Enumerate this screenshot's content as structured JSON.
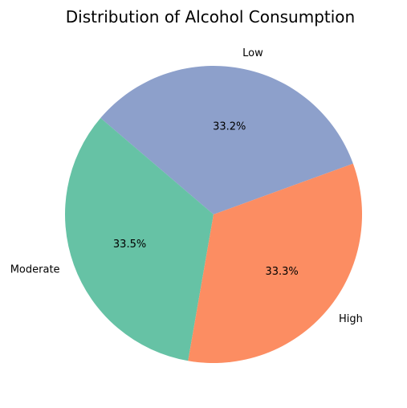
{
  "chart_data": {
    "type": "pie",
    "title": "Distribution of Alcohol Consumption",
    "slices": [
      {
        "label": "Low",
        "value": 33.2,
        "pct_label": "33.2%",
        "color": "#8da0cb"
      },
      {
        "label": "Moderate",
        "value": 33.5,
        "pct_label": "33.5%",
        "color": "#66c2a5"
      },
      {
        "label": "High",
        "value": 33.3,
        "pct_label": "33.3%",
        "color": "#fc8d62"
      }
    ],
    "start_angle_deg": 20,
    "direction": "counterclockwise",
    "legend": "none"
  }
}
